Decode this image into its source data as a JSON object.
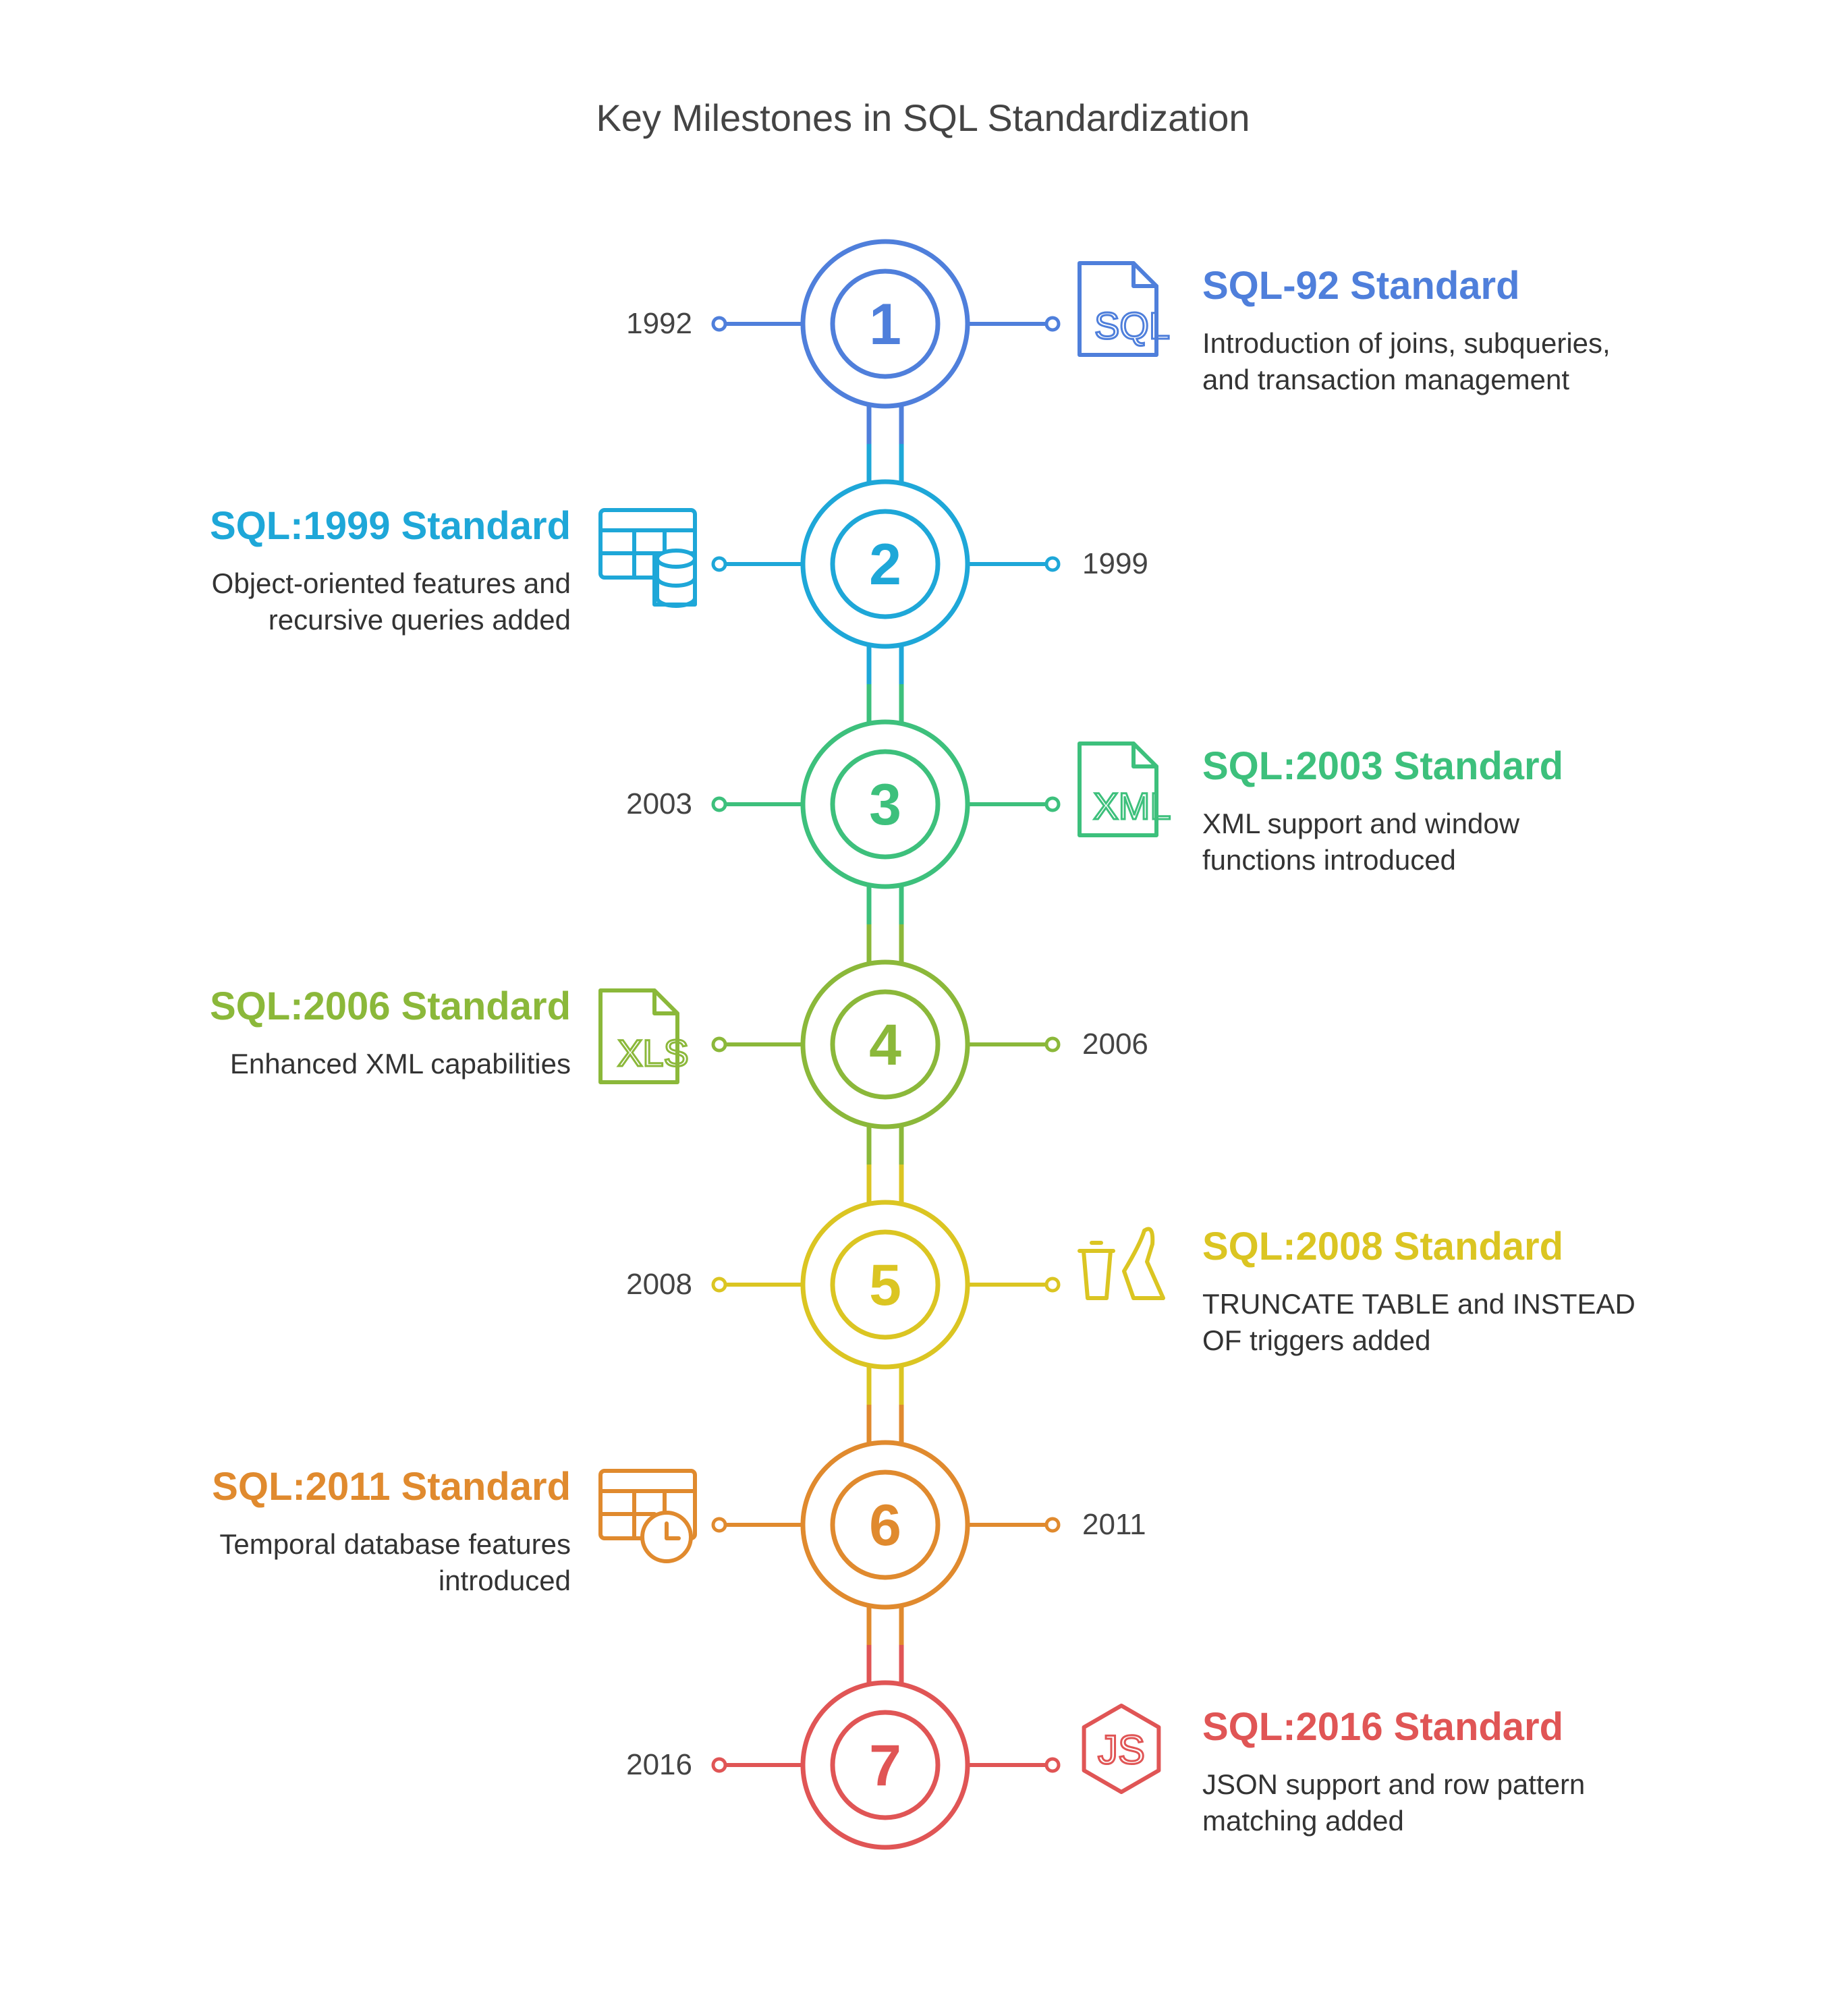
{
  "title": "Key Milestones in SQL Standardization",
  "milestones": [
    {
      "num": "1",
      "year": "1992",
      "title": "SQL-92 Standard",
      "desc_lines": [
        "Introduction of joins, subqueries,",
        "and transaction management"
      ],
      "side": "right",
      "color": "#4f7fdb",
      "icon": "sql-file-icon"
    },
    {
      "num": "2",
      "year": "1999",
      "title": "SQL:1999 Standard",
      "desc_lines": [
        "Object-oriented features and",
        "recursive queries added"
      ],
      "side": "left",
      "color": "#1ea7d8",
      "icon": "table-database-icon"
    },
    {
      "num": "3",
      "year": "2003",
      "title": "SQL:2003 Standard",
      "desc_lines": [
        "XML support and window",
        "functions introduced"
      ],
      "side": "right",
      "color": "#3dc07c",
      "icon": "xml-file-icon"
    },
    {
      "num": "4",
      "year": "2006",
      "title": "SQL:2006 Standard",
      "desc_lines": [
        "Enhanced XML capabilities"
      ],
      "side": "left",
      "color": "#8bb83a",
      "icon": "xls-file-icon"
    },
    {
      "num": "5",
      "year": "2008",
      "title": "SQL:2008 Standard",
      "desc_lines": [
        "TRUNCATE TABLE and INSTEAD",
        "OF triggers added"
      ],
      "side": "right",
      "color": "#dbc522",
      "icon": "trash-trigger-icon"
    },
    {
      "num": "6",
      "year": "2011",
      "title": "SQL:2011 Standard",
      "desc_lines": [
        "Temporal database features",
        "introduced"
      ],
      "side": "left",
      "color": "#e08a2e",
      "icon": "table-clock-icon"
    },
    {
      "num": "7",
      "year": "2016",
      "title": "SQL:2016 Standard",
      "desc_lines": [
        "JSON support and row pattern",
        "matching added"
      ],
      "side": "right",
      "color": "#e05555",
      "icon": "js-hexagon-icon"
    }
  ]
}
